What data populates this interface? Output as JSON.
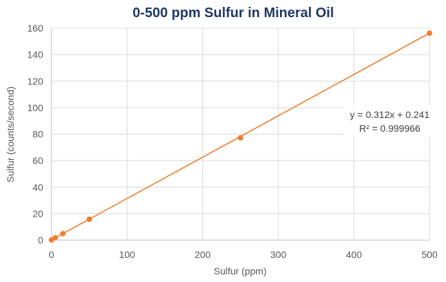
{
  "chart_data": {
    "type": "scatter",
    "title": "0-500 ppm Sulfur in Mineral Oil",
    "xlabel": "Sulfur (ppm)",
    "ylabel": "Sulfur (counts/second)",
    "xlim": [
      0,
      500
    ],
    "ylim": [
      0,
      160
    ],
    "x_ticks": [
      0,
      100,
      200,
      300,
      400,
      500
    ],
    "y_ticks": [
      0,
      20,
      40,
      60,
      80,
      100,
      120,
      140,
      160
    ],
    "grid": true,
    "series": [
      {
        "x": [
          0,
          5,
          15,
          50,
          250,
          500
        ],
        "y": [
          0.2,
          1.8,
          4.9,
          15.8,
          77.2,
          156.2
        ],
        "color": "#ed7d31"
      }
    ],
    "trendline": {
      "slope": 0.312,
      "intercept": 0.241,
      "color": "#ed7d31",
      "equation_text": "y = 0.312x + 0.241",
      "r2_text": "R² = 0.999966"
    },
    "colors": {
      "title": "#1f3864",
      "grid": "#d9d9d9",
      "text": "#595959"
    }
  }
}
